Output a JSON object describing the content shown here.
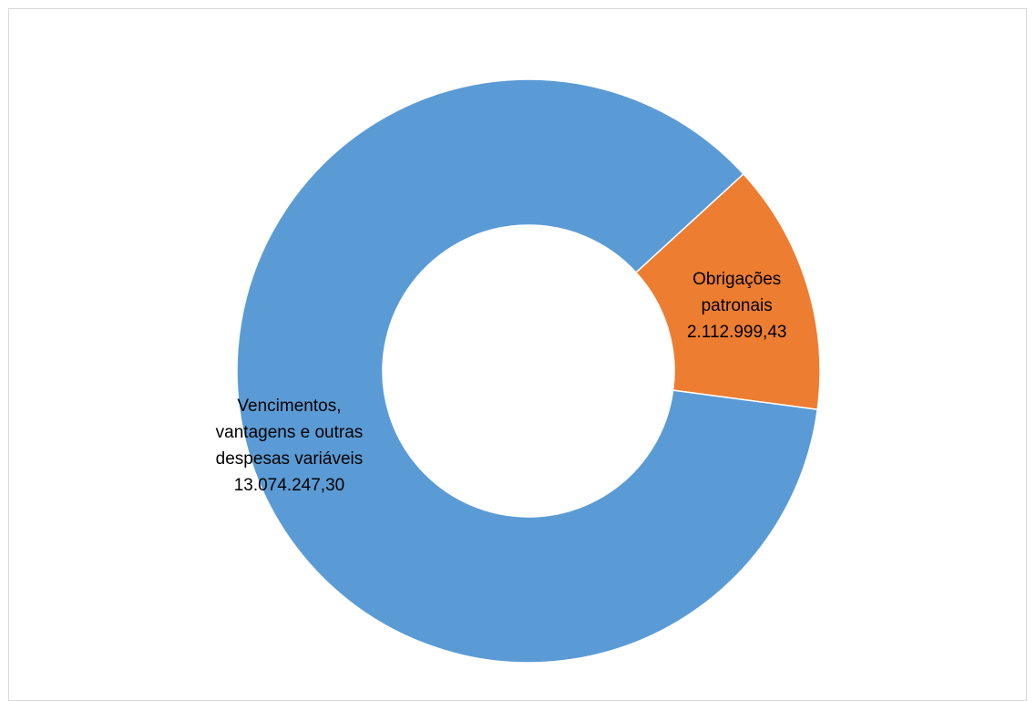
{
  "chart_data": {
    "type": "donut",
    "title": "",
    "series": [
      {
        "values": [
          2112999.43,
          13074247.3
        ],
        "slices": [
          {
            "label_lines": [
              "Obrigações",
              "patronais"
            ],
            "value_text": "2.112.999,43",
            "value": 2112999.43,
            "color": "#ED7D31"
          },
          {
            "label_lines": [
              "Vencimentos,",
              "vantagens e outras",
              "despesas variáveis"
            ],
            "value_text": "13.074.247,30",
            "value": 13074247.3,
            "color": "#5B9BD5"
          }
        ]
      }
    ],
    "start_angle_deg": 47.5,
    "direction": "clockwise",
    "hole_ratio": 0.5,
    "legend": "none"
  }
}
